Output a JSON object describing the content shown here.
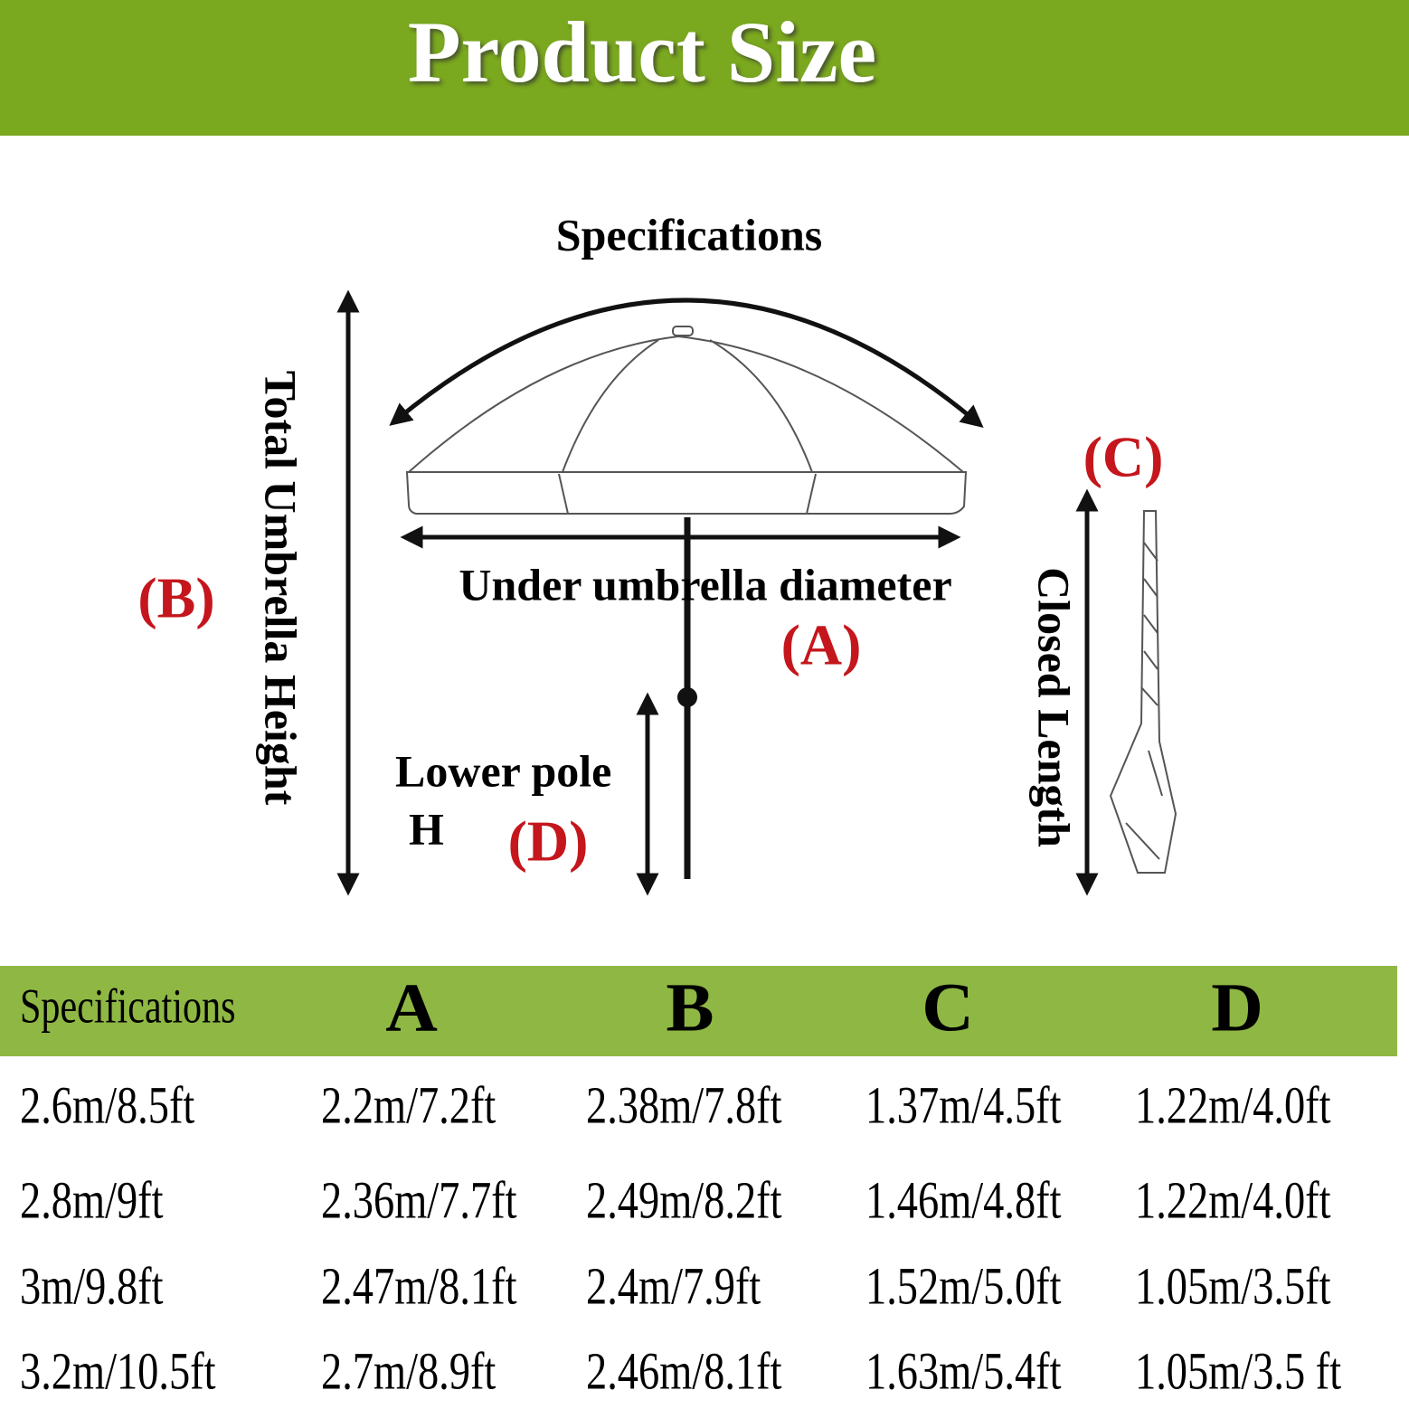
{
  "header": {
    "title": "Product Size"
  },
  "diagram": {
    "title": "Specifications",
    "height_label": "Total Umbrella Height",
    "height_marker": "(B)",
    "diameter_label": "Under umbrella diameter",
    "diameter_marker": "(A)",
    "lower_pole_label": "Lower pole",
    "lower_pole_label_2": "H",
    "lower_pole_marker": "(D)",
    "closed_label": "Closed Length",
    "closed_marker": "(C)"
  },
  "table": {
    "header": [
      "Specifications",
      "A",
      "B",
      "C",
      "D"
    ],
    "rows": [
      [
        "2.6m/8.5ft",
        "2.2m/7.2ft",
        "2.38m/7.8ft",
        "1.37m/4.5ft",
        "1.22m/4.0ft"
      ],
      [
        "2.8m/9ft",
        "2.36m/7.7ft",
        "2.49m/8.2ft",
        "1.46m/4.8ft",
        "1.22m/4.0ft"
      ],
      [
        "3m/9.8ft",
        "2.47m/8.1ft",
        "2.4m/7.9ft",
        "1.52m/5.0ft",
        "1.05m/3.5ft"
      ],
      [
        "3.2m/10.5ft",
        "2.7m/8.9ft",
        "2.46m/8.1ft",
        "1.63m/5.4ft",
        "1.05m/3.5 ft"
      ]
    ]
  }
}
